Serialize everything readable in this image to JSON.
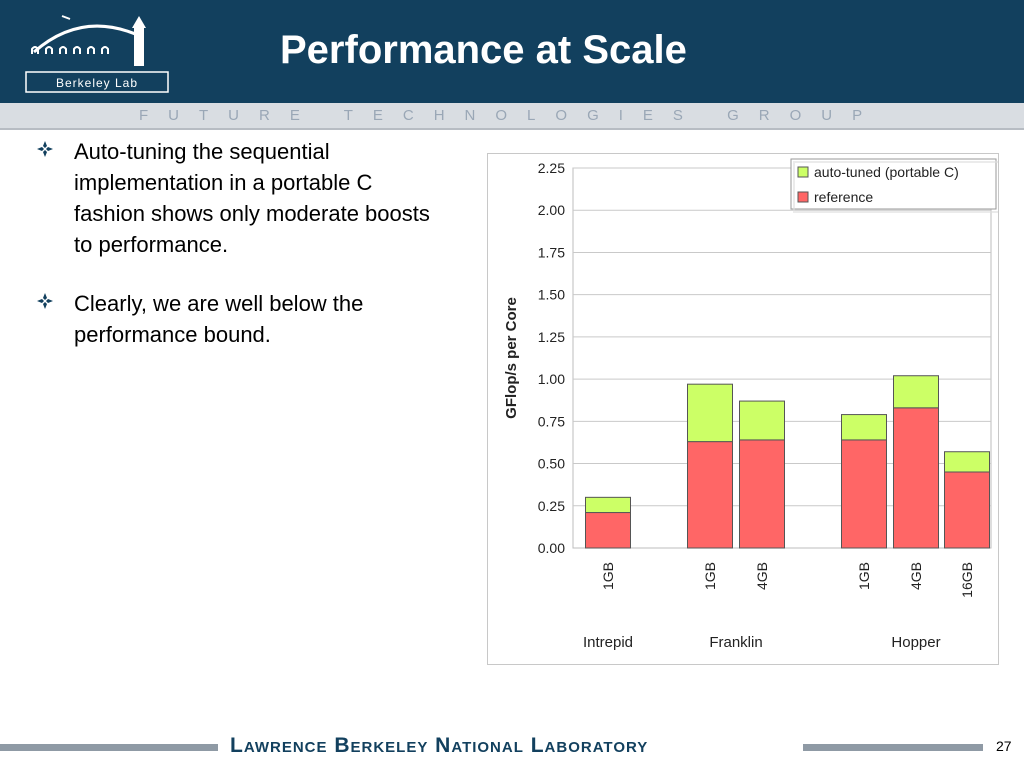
{
  "header": {
    "title": "Performance at Scale",
    "logo_text": "Berkeley Lab",
    "subtitle_bar": "FUTURE TECHNOLOGIES GROUP"
  },
  "bullets": [
    {
      "icon": "diamond-bullet-icon",
      "text": "Auto-tuning the sequential implementation in a portable C fashion shows only moderate boosts to performance."
    },
    {
      "icon": "diamond-bullet-icon",
      "text": "Clearly, we are well below the performance bound."
    }
  ],
  "footer": {
    "lab_name": "Lawrence Berkeley National Laboratory",
    "page_number": "27"
  },
  "colors": {
    "header_bg": "#12405e",
    "auto_tuned": "#ccff66",
    "reference": "#ff6666"
  },
  "chart_data": {
    "type": "bar",
    "stacked": true,
    "ylabel": "GFlop/s per Core",
    "ylim": [
      0,
      2.25
    ],
    "yticks": [
      "0.00",
      "0.25",
      "0.50",
      "0.75",
      "1.00",
      "1.25",
      "1.50",
      "1.75",
      "2.00",
      "2.25"
    ],
    "grid": "horizontal",
    "legend_placement": "top-right",
    "groups": [
      {
        "name": "Intrepid",
        "categories": [
          "1GB"
        ]
      },
      {
        "name": "Franklin",
        "categories": [
          "1GB",
          "4GB"
        ]
      },
      {
        "name": "Hopper",
        "categories": [
          "1GB",
          "4GB",
          "16GB"
        ]
      }
    ],
    "categories": [
      "1GB",
      "1GB",
      "4GB",
      "1GB",
      "4GB",
      "16GB"
    ],
    "series": [
      {
        "name": "reference",
        "color": "#ff6666",
        "values": [
          0.21,
          0.63,
          0.64,
          0.64,
          0.83,
          0.45
        ]
      },
      {
        "name": "auto-tuned (portable C)",
        "color": "#ccff66",
        "totals": [
          0.3,
          0.97,
          0.87,
          0.79,
          1.02,
          0.57
        ]
      }
    ]
  }
}
